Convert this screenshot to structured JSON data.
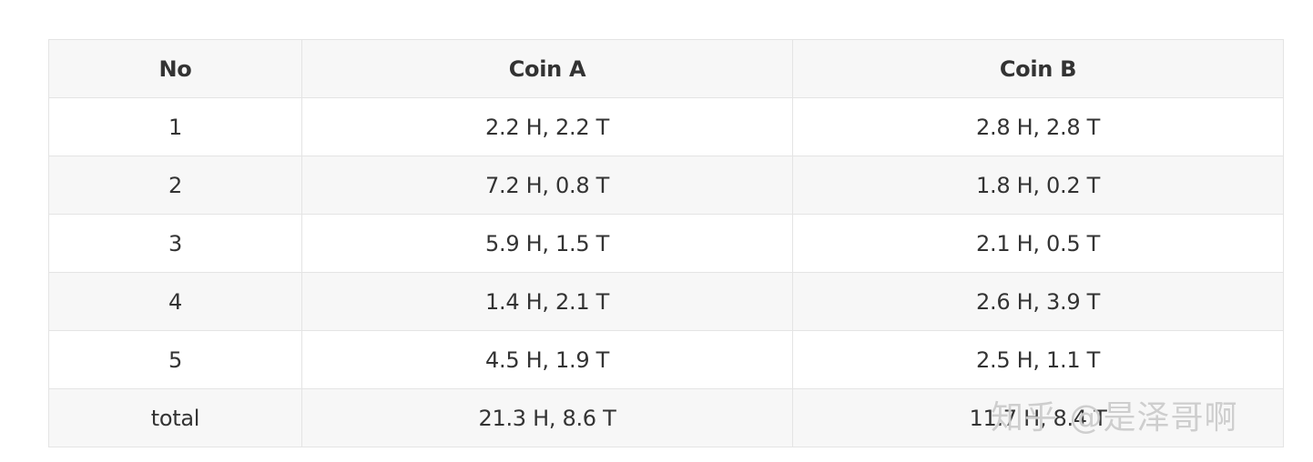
{
  "table": {
    "headers": [
      "No",
      "Coin A",
      "Coin B"
    ],
    "rows": [
      [
        "1",
        "2.2 H, 2.2 T",
        "2.8 H, 2.8 T"
      ],
      [
        "2",
        "7.2 H, 0.8 T",
        "1.8 H, 0.2 T"
      ],
      [
        "3",
        "5.9 H, 1.5 T",
        "2.1 H, 0.5 T"
      ],
      [
        "4",
        "1.4 H, 2.1 T",
        "2.6 H, 3.9 T"
      ],
      [
        "5",
        "4.5 H, 1.9 T",
        "2.5 H, 1.1 T"
      ],
      [
        "total",
        "21.3 H, 8.6 T",
        "11.7 H, 8.4 T"
      ]
    ]
  },
  "watermark": {
    "text": "知乎 @是泽哥啊"
  }
}
